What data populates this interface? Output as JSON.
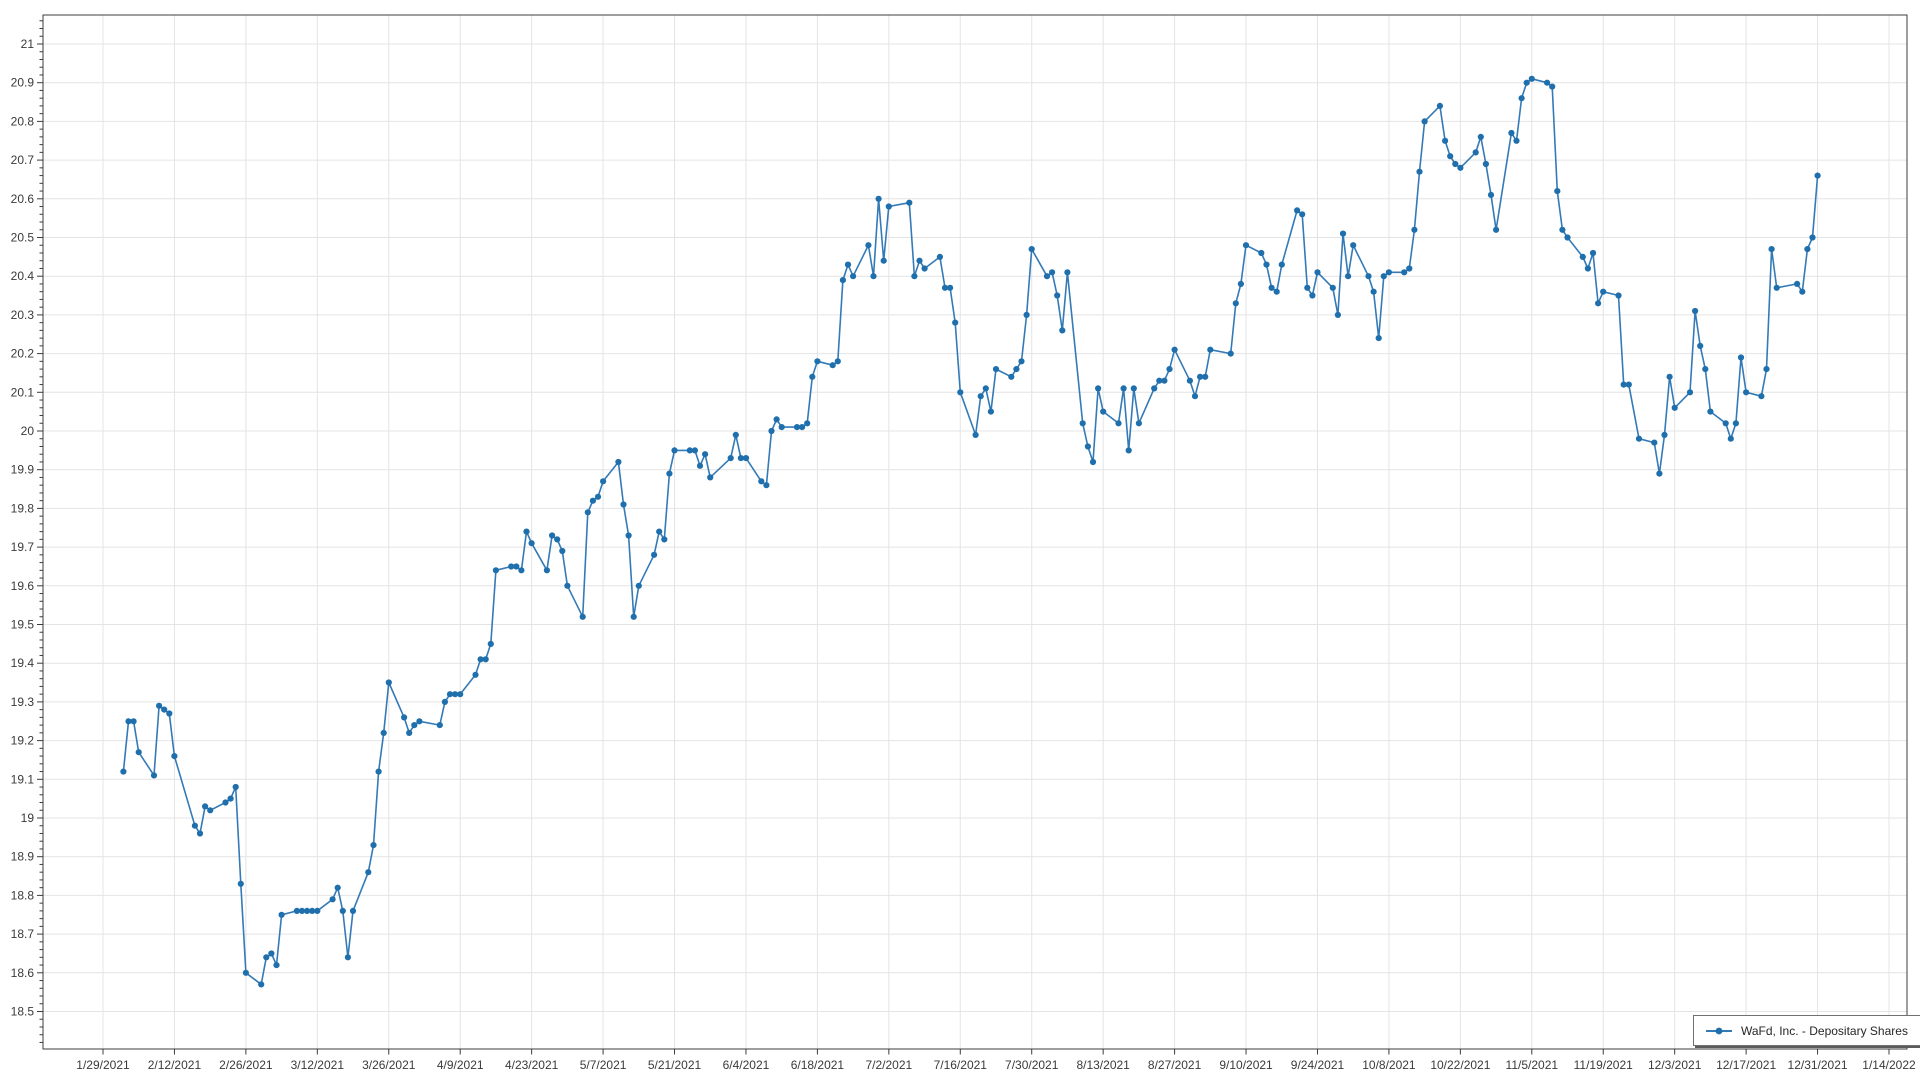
{
  "legend": {
    "label": "WaFd, Inc. - Depositary Shares"
  },
  "colors": {
    "line": "#337ab7",
    "marker": "#1f6fad",
    "grid": "#e4e4e4",
    "axis": "#3c3c3c",
    "tick": "#3c3c3c",
    "label": "#3a3a3a",
    "background": "#ffffff",
    "legend_border": "#707070",
    "legend_shadow": "#5c5c5c"
  },
  "chart_data": {
    "type": "line",
    "title": "",
    "xlabel": "",
    "ylabel": "",
    "grid": true,
    "legend_position": "bottom-right",
    "series_name": "WaFd, Inc. - Depositary Shares",
    "ylim": [
      18.4,
      21.08
    ],
    "y_tick_labels": [
      "18.5",
      "18.6",
      "18.7",
      "18.8",
      "18.9",
      "19",
      "19.1",
      "19.2",
      "19.3",
      "19.4",
      "19.5",
      "19.6",
      "19.7",
      "19.8",
      "19.9",
      "20",
      "20.1",
      "20.2",
      "20.3",
      "20.4",
      "20.5",
      "20.6",
      "20.7",
      "20.8",
      "20.9",
      "21"
    ],
    "y_ticks": [
      18.5,
      18.6,
      18.7,
      18.8,
      18.9,
      19.0,
      19.1,
      19.2,
      19.3,
      19.4,
      19.5,
      19.6,
      19.7,
      19.8,
      19.9,
      20.0,
      20.1,
      20.2,
      20.3,
      20.4,
      20.5,
      20.6,
      20.7,
      20.8,
      20.9,
      21.0
    ],
    "y_minor_step": 0.02,
    "x_tick_labels": [
      "1/29/2021",
      "2/12/2021",
      "2/26/2021",
      "3/12/2021",
      "3/26/2021",
      "4/9/2021",
      "4/23/2021",
      "5/7/2021",
      "5/21/2021",
      "6/4/2021",
      "6/18/2021",
      "7/2/2021",
      "7/16/2021",
      "7/30/2021",
      "8/13/2021",
      "8/27/2021",
      "9/10/2021",
      "9/24/2021",
      "10/8/2021",
      "10/22/2021",
      "11/5/2021",
      "11/19/2021",
      "12/3/2021",
      "12/17/2021",
      "12/31/2021",
      "1/14/2022"
    ],
    "dates": [
      "2/2/2021",
      "2/3/2021",
      "2/4/2021",
      "2/5/2021",
      "2/8/2021",
      "2/9/2021",
      "2/10/2021",
      "2/11/2021",
      "2/12/2021",
      "2/16/2021",
      "2/17/2021",
      "2/18/2021",
      "2/19/2021",
      "2/22/2021",
      "2/23/2021",
      "2/24/2021",
      "2/25/2021",
      "2/26/2021",
      "3/1/2021",
      "3/2/2021",
      "3/3/2021",
      "3/4/2021",
      "3/5/2021",
      "3/8/2021",
      "3/9/2021",
      "3/10/2021",
      "3/11/2021",
      "3/12/2021",
      "3/15/2021",
      "3/16/2021",
      "3/17/2021",
      "3/18/2021",
      "3/19/2021",
      "3/22/2021",
      "3/23/2021",
      "3/24/2021",
      "3/25/2021",
      "3/26/2021",
      "3/29/2021",
      "3/30/2021",
      "3/31/2021",
      "4/1/2021",
      "4/5/2021",
      "4/6/2021",
      "4/7/2021",
      "4/8/2021",
      "4/9/2021",
      "4/12/2021",
      "4/13/2021",
      "4/14/2021",
      "4/15/2021",
      "4/16/2021",
      "4/19/2021",
      "4/20/2021",
      "4/21/2021",
      "4/22/2021",
      "4/23/2021",
      "4/26/2021",
      "4/27/2021",
      "4/28/2021",
      "4/29/2021",
      "4/30/2021",
      "5/3/2021",
      "5/4/2021",
      "5/5/2021",
      "5/6/2021",
      "5/7/2021",
      "5/10/2021",
      "5/11/2021",
      "5/12/2021",
      "5/13/2021",
      "5/14/2021",
      "5/17/2021",
      "5/18/2021",
      "5/19/2021",
      "5/20/2021",
      "5/21/2021",
      "5/24/2021",
      "5/25/2021",
      "5/26/2021",
      "5/27/2021",
      "5/28/2021",
      "6/1/2021",
      "6/2/2021",
      "6/3/2021",
      "6/4/2021",
      "6/7/2021",
      "6/8/2021",
      "6/9/2021",
      "6/10/2021",
      "6/11/2021",
      "6/14/2021",
      "6/15/2021",
      "6/16/2021",
      "6/17/2021",
      "6/18/2021",
      "6/21/2021",
      "6/22/2021",
      "6/23/2021",
      "6/24/2021",
      "6/25/2021",
      "6/28/2021",
      "6/29/2021",
      "6/30/2021",
      "7/1/2021",
      "7/2/2021",
      "7/6/2021",
      "7/7/2021",
      "7/8/2021",
      "7/9/2021",
      "7/12/2021",
      "7/13/2021",
      "7/14/2021",
      "7/15/2021",
      "7/16/2021",
      "7/19/2021",
      "7/20/2021",
      "7/21/2021",
      "7/22/2021",
      "7/23/2021",
      "7/26/2021",
      "7/27/2021",
      "7/28/2021",
      "7/29/2021",
      "7/30/2021",
      "8/2/2021",
      "8/3/2021",
      "8/4/2021",
      "8/5/2021",
      "8/6/2021",
      "8/9/2021",
      "8/10/2021",
      "8/11/2021",
      "8/12/2021",
      "8/13/2021",
      "8/16/2021",
      "8/17/2021",
      "8/18/2021",
      "8/19/2021",
      "8/20/2021",
      "8/23/2021",
      "8/24/2021",
      "8/25/2021",
      "8/26/2021",
      "8/27/2021",
      "8/30/2021",
      "8/31/2021",
      "9/1/2021",
      "9/2/2021",
      "9/3/2021",
      "9/7/2021",
      "9/8/2021",
      "9/9/2021",
      "9/10/2021",
      "9/13/2021",
      "9/14/2021",
      "9/15/2021",
      "9/16/2021",
      "9/17/2021",
      "9/20/2021",
      "9/21/2021",
      "9/22/2021",
      "9/23/2021",
      "9/24/2021",
      "9/27/2021",
      "9/28/2021",
      "9/29/2021",
      "9/30/2021",
      "10/1/2021",
      "10/4/2021",
      "10/5/2021",
      "10/6/2021",
      "10/7/2021",
      "10/8/2021",
      "10/11/2021",
      "10/12/2021",
      "10/13/2021",
      "10/14/2021",
      "10/15/2021",
      "10/18/2021",
      "10/19/2021",
      "10/20/2021",
      "10/21/2021",
      "10/22/2021",
      "10/25/2021",
      "10/26/2021",
      "10/27/2021",
      "10/28/2021",
      "10/29/2021",
      "11/1/2021",
      "11/2/2021",
      "11/3/2021",
      "11/4/2021",
      "11/5/2021",
      "11/8/2021",
      "11/9/2021",
      "11/10/2021",
      "11/11/2021",
      "11/12/2021",
      "11/15/2021",
      "11/16/2021",
      "11/17/2021",
      "11/18/2021",
      "11/19/2021",
      "11/22/2021",
      "11/23/2021",
      "11/24/2021",
      "11/26/2021",
      "11/29/2021",
      "11/30/2021",
      "12/1/2021",
      "12/2/2021",
      "12/3/2021",
      "12/6/2021",
      "12/7/2021",
      "12/8/2021",
      "12/9/2021",
      "12/10/2021",
      "12/13/2021",
      "12/14/2021",
      "12/15/2021",
      "12/16/2021",
      "12/17/2021",
      "12/20/2021",
      "12/21/2021",
      "12/22/2021",
      "12/23/2021",
      "12/27/2021",
      "12/28/2021",
      "12/29/2021",
      "12/30/2021",
      "12/31/2021"
    ],
    "values": [
      19.12,
      19.25,
      19.25,
      19.17,
      19.11,
      19.29,
      19.28,
      19.27,
      19.16,
      18.98,
      18.96,
      19.03,
      19.02,
      19.04,
      19.05,
      19.08,
      18.83,
      18.6,
      18.57,
      18.64,
      18.65,
      18.62,
      18.75,
      18.76,
      18.76,
      18.76,
      18.76,
      18.76,
      18.79,
      18.82,
      18.76,
      18.64,
      18.76,
      18.86,
      18.93,
      19.12,
      19.22,
      19.35,
      19.26,
      19.22,
      19.24,
      19.25,
      19.24,
      19.3,
      19.32,
      19.32,
      19.32,
      19.37,
      19.41,
      19.41,
      19.45,
      19.64,
      19.65,
      19.65,
      19.64,
      19.74,
      19.71,
      19.64,
      19.73,
      19.72,
      19.69,
      19.6,
      19.52,
      19.79,
      19.82,
      19.83,
      19.87,
      19.92,
      19.81,
      19.73,
      19.52,
      19.6,
      19.68,
      19.74,
      19.72,
      19.89,
      19.95,
      19.95,
      19.95,
      19.91,
      19.94,
      19.88,
      19.93,
      19.99,
      19.93,
      19.93,
      19.87,
      19.86,
      20.0,
      20.03,
      20.01,
      20.01,
      20.01,
      20.02,
      20.14,
      20.18,
      20.17,
      20.18,
      20.39,
      20.43,
      20.4,
      20.48,
      20.4,
      20.6,
      20.44,
      20.58,
      20.59,
      20.4,
      20.44,
      20.42,
      20.45,
      20.37,
      20.37,
      20.28,
      20.1,
      19.99,
      20.09,
      20.11,
      20.05,
      20.16,
      20.14,
      20.16,
      20.18,
      20.3,
      20.47,
      20.4,
      20.41,
      20.35,
      20.26,
      20.41,
      20.02,
      19.96,
      19.92,
      20.11,
      20.05,
      20.02,
      20.11,
      19.95,
      20.11,
      20.02,
      20.11,
      20.13,
      20.13,
      20.16,
      20.21,
      20.13,
      20.09,
      20.14,
      20.14,
      20.21,
      20.2,
      20.33,
      20.38,
      20.48,
      20.46,
      20.43,
      20.37,
      20.36,
      20.43,
      20.57,
      20.56,
      20.37,
      20.35,
      20.41,
      20.37,
      20.3,
      20.51,
      20.4,
      20.48,
      20.4,
      20.36,
      20.24,
      20.4,
      20.41,
      20.41,
      20.42,
      20.52,
      20.67,
      20.8,
      20.84,
      20.75,
      20.71,
      20.69,
      20.68,
      20.72,
      20.76,
      20.69,
      20.61,
      20.52,
      20.77,
      20.75,
      20.86,
      20.9,
      20.91,
      20.9,
      20.89,
      20.62,
      20.52,
      20.5,
      20.45,
      20.42,
      20.46,
      20.33,
      20.36,
      20.35,
      20.12,
      20.12,
      19.98,
      19.97,
      19.89,
      19.99,
      20.14,
      20.06,
      20.1,
      20.31,
      20.22,
      20.16,
      20.05,
      20.02,
      19.98,
      20.02,
      20.19,
      20.1,
      20.09,
      20.16,
      20.47,
      20.37,
      20.38,
      20.36,
      20.47,
      20.5,
      20.66
    ]
  }
}
